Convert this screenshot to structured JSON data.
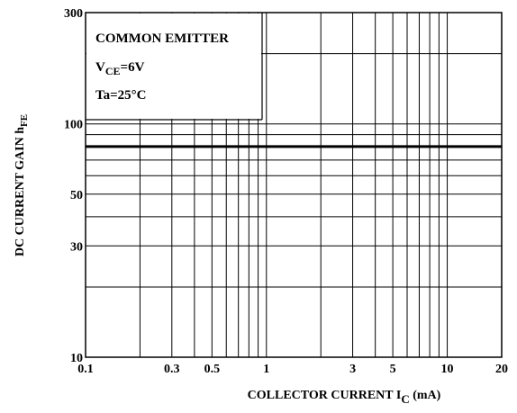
{
  "chart_data": {
    "type": "line",
    "annotation": {
      "line1": "COMMON EMITTER",
      "line2": {
        "main": "V",
        "sub": "CE",
        "rest": "=6V"
      },
      "line3": "Ta=25°C"
    },
    "ylabel": {
      "main": "DC CURRENT GAIN  h",
      "sub": "FE"
    },
    "xlabel": {
      "main": "COLLECTOR CURRENT  I",
      "sub": "C",
      "rest": "  (mA)"
    },
    "x": [
      0.1,
      20
    ],
    "series": [
      {
        "color": "#000000",
        "values": [
          80,
          80
        ]
      }
    ],
    "xlog": true,
    "ylog": true,
    "grid": true,
    "xlim": [
      0.1,
      20
    ],
    "ylim": [
      10,
      300
    ],
    "xticks": [
      0.1,
      0.3,
      0.5,
      1,
      3,
      5,
      10,
      20
    ],
    "yticks": [
      10,
      30,
      50,
      100,
      300
    ],
    "xgrid": [
      0.2,
      0.3,
      0.4,
      0.5,
      0.6,
      0.7,
      0.8,
      0.9,
      1,
      2,
      3,
      4,
      5,
      6,
      7,
      8,
      9,
      10
    ],
    "ygrid": [
      20,
      30,
      40,
      50,
      60,
      70,
      80,
      90,
      100,
      200
    ]
  }
}
